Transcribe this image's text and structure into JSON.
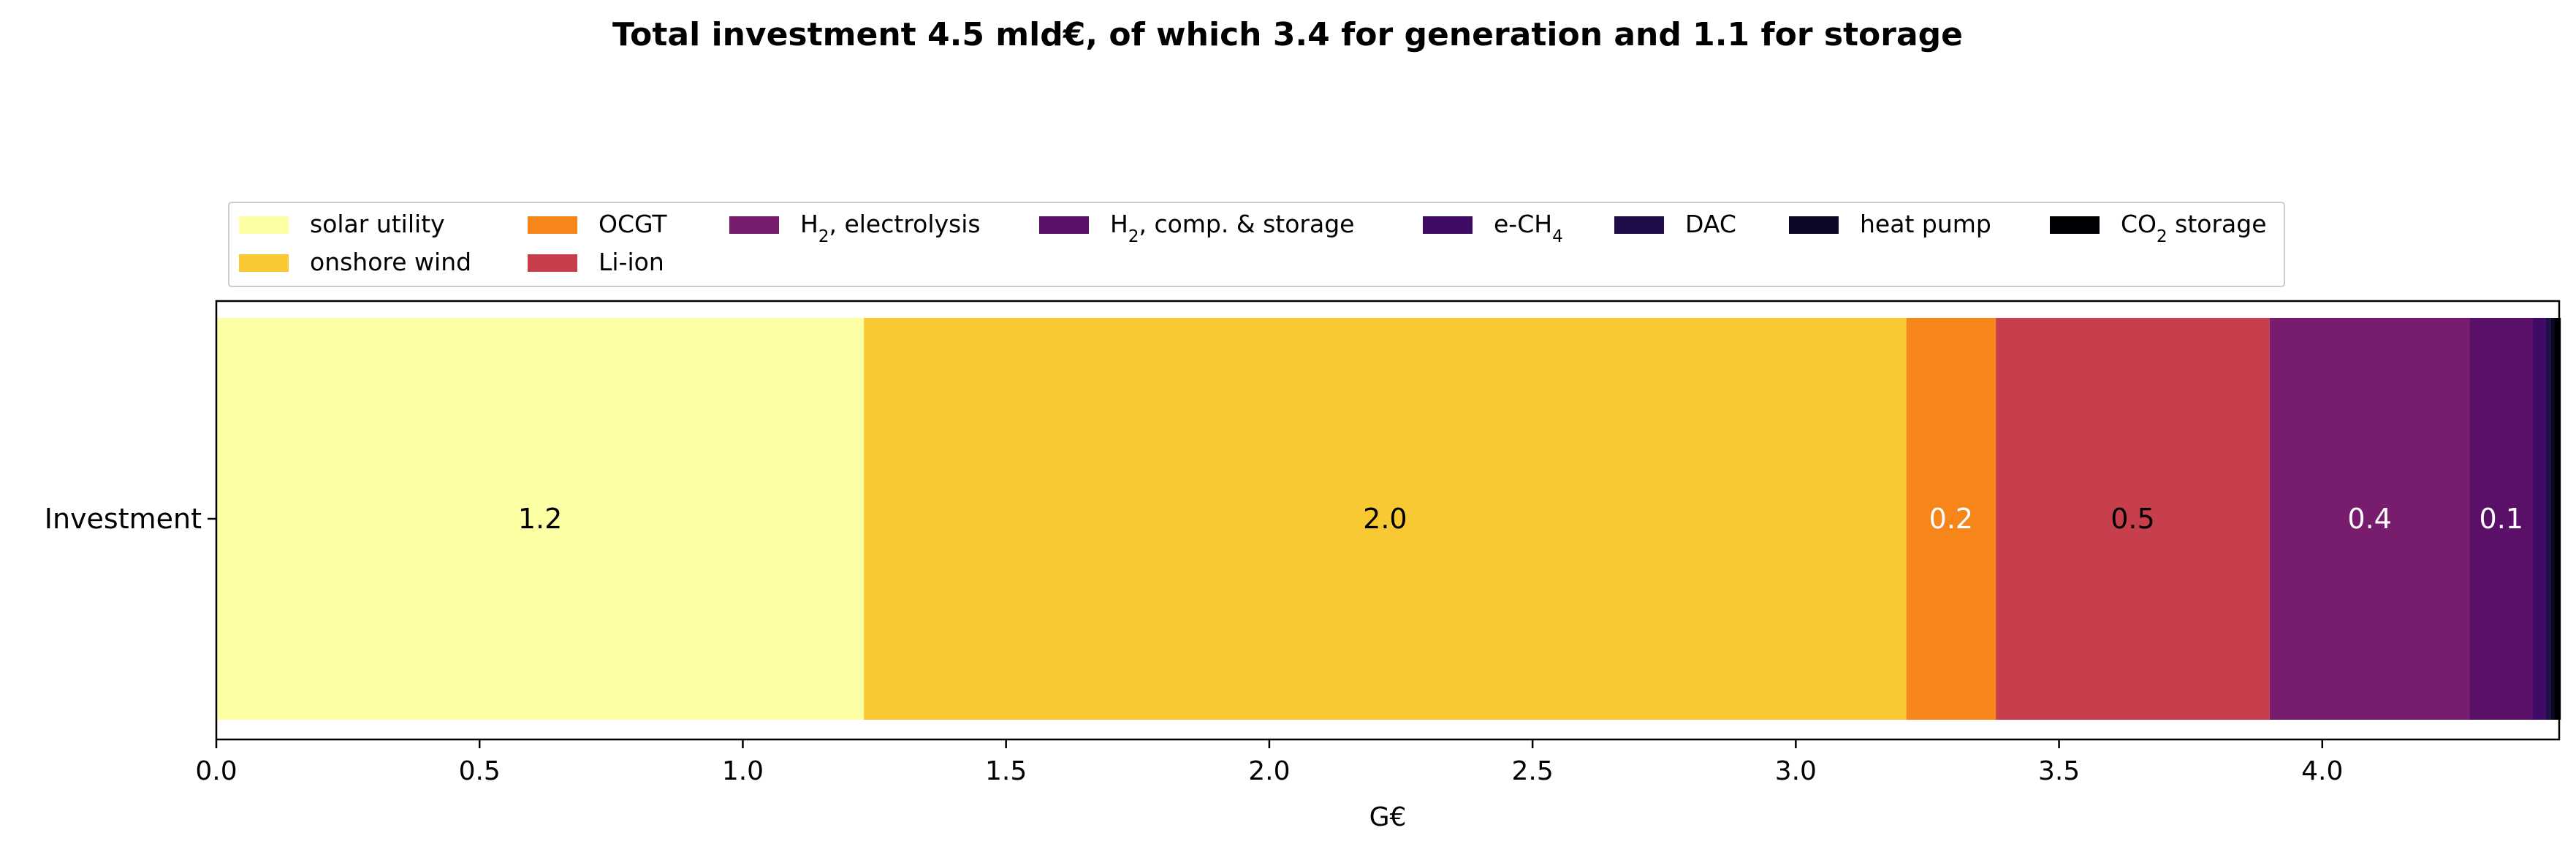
{
  "chart_data": {
    "type": "bar",
    "orientation": "horizontal",
    "stacked": true,
    "title": "Total investment 4.5 mld€, of which 3.4 for generation and 1.1 for storage",
    "xlabel": "G€",
    "ylabel": "",
    "xlim": [
      0.0,
      4.45
    ],
    "xticks": [
      "0.0",
      "0.5",
      "1.0",
      "1.5",
      "2.0",
      "2.5",
      "3.0",
      "3.5",
      "4.0"
    ],
    "categories": [
      "Investment"
    ],
    "legend_position": "top, above the axes, 8 columns",
    "grid": false,
    "series": [
      {
        "name": "solar utility",
        "label_main": "solar utility",
        "label_sub": "",
        "label_tail": "",
        "values": [
          1.23
        ],
        "color": "#fcffa4",
        "data_label": "1.2",
        "data_label_color": "#000000"
      },
      {
        "name": "onshore wind",
        "label_main": "onshore wind",
        "label_sub": "",
        "label_tail": "",
        "values": [
          1.98
        ],
        "color": "#f8c932",
        "data_label": "2.0",
        "data_label_color": "#000000"
      },
      {
        "name": "OCGT",
        "label_main": "OCGT",
        "label_sub": "",
        "label_tail": "",
        "values": [
          0.17
        ],
        "color": "#f6851a",
        "data_label": "0.2",
        "data_label_color": "#ffffff"
      },
      {
        "name": "Li-ion",
        "label_main": "Li-ion",
        "label_sub": "",
        "label_tail": "",
        "values": [
          0.52
        ],
        "color": "#c73e4c",
        "data_label": "0.5",
        "data_label_color": "#000000"
      },
      {
        "name": "H2, electrolysis",
        "label_main": "H",
        "label_sub": "2",
        "label_tail": ", electrolysis",
        "values": [
          0.38
        ],
        "color": "#781c6d",
        "data_label": "0.4",
        "data_label_color": "#ffffff"
      },
      {
        "name": "H2, comp. & storage",
        "label_main": "H",
        "label_sub": "2",
        "label_tail": ", comp. & storage",
        "values": [
          0.12
        ],
        "color": "#5a1068",
        "data_label": "0.1",
        "data_label_color": "#ffffff"
      },
      {
        "name": "e-CH4",
        "label_main": "e-CH",
        "label_sub": "4",
        "label_tail": "",
        "values": [
          0.025
        ],
        "color": "#400a67",
        "data_label": "",
        "data_label_color": "#ffffff"
      },
      {
        "name": "DAC",
        "label_main": "DAC",
        "label_sub": "",
        "label_tail": "",
        "values": [
          0.008
        ],
        "color": "#1f0c48",
        "data_label": "",
        "data_label_color": "#ffffff"
      },
      {
        "name": "heat pump",
        "label_main": "heat pump",
        "label_sub": "",
        "label_tail": "",
        "values": [
          0.008
        ],
        "color": "#0c0826",
        "data_label": "",
        "data_label_color": "#ffffff"
      },
      {
        "name": "CO2 storage",
        "label_main": "CO",
        "label_sub": "2",
        "label_tail": " storage",
        "values": [
          0.012
        ],
        "color": "#000004",
        "data_label": "",
        "data_label_color": "#ffffff"
      }
    ]
  }
}
